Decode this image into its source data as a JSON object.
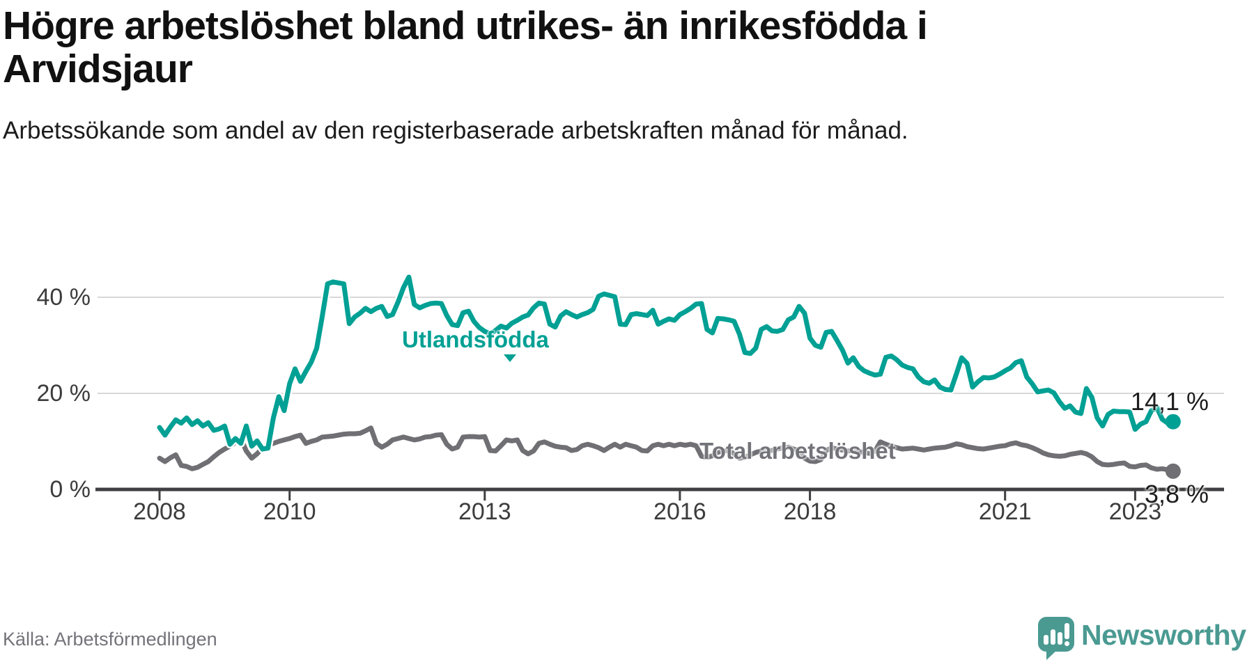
{
  "header": {
    "title": "Högre arbetslöshet bland utrikes- än inrikesfödda i Arvidsjaur",
    "subtitle": "Arbetssökande som andel av den registerbaserade arbetskraften månad för månad."
  },
  "footer": {
    "source": "Källa: Arbetsförmedlingen",
    "brand": "Newsworthy",
    "brand_color": "#4A9A92",
    "logo_icon": "speech-bubble-bar-chart-icon"
  },
  "chart_data": {
    "type": "line",
    "title": "Högre arbetslöshet bland utrikes- än inrikesfödda i Arvidsjaur",
    "subtitle": "Arbetssökande som andel av den registerbaserade arbetskraften månad för månad.",
    "grid": "horizontal",
    "background": "#ffffff",
    "gridline_color": "#D8D8D8",
    "axis_color": "#3F3F42",
    "x_start": "2008-01",
    "x_end": "2023-08",
    "x_axis": {
      "ticks": [
        {
          "year": 2008,
          "label": "2008"
        },
        {
          "year": 2010,
          "label": "2010"
        },
        {
          "year": 2013,
          "label": "2013"
        },
        {
          "year": 2016,
          "label": "2016"
        },
        {
          "year": 2018,
          "label": "2018"
        },
        {
          "year": 2021,
          "label": "2021"
        },
        {
          "year": 2023,
          "label": "2023"
        }
      ]
    },
    "y_axis": {
      "unit": "%",
      "ticks": [
        {
          "value": 40,
          "label": "40 %"
        },
        {
          "value": 20,
          "label": "20 %"
        },
        {
          "value": 0,
          "label": "0 %"
        }
      ],
      "ylim": [
        0,
        46
      ]
    },
    "series": [
      {
        "name": "Utlandsfödda",
        "color": "#00A094",
        "end_label": "14,1 %",
        "end_value": 14.1,
        "values": [
          12.9,
          11.3,
          13.0,
          14.5,
          13.8,
          14.9,
          13.5,
          14.3,
          13.2,
          13.9,
          12.3,
          12.6,
          13.2,
          9.4,
          10.6,
          9.6,
          13.2,
          9.0,
          10.1,
          8.4,
          8.6,
          14.9,
          19.3,
          16.4,
          22.0,
          25.1,
          22.5,
          24.6,
          26.5,
          29.4,
          35.9,
          42.8,
          43.2,
          43.0,
          42.8,
          34.5,
          35.9,
          36.7,
          37.7,
          37.0,
          37.7,
          38.1,
          36.0,
          36.4,
          39.0,
          42.0,
          44.2,
          38.5,
          37.8,
          38.3,
          38.7,
          38.8,
          38.7,
          36.2,
          34.3,
          34.1,
          36.8,
          37.1,
          35.0,
          33.7,
          32.9,
          32.4,
          33.1,
          34.0,
          33.6,
          34.6,
          35.2,
          35.9,
          36.3,
          37.8,
          38.8,
          38.6,
          34.4,
          33.8,
          36.1,
          37.0,
          36.4,
          35.9,
          36.4,
          36.8,
          37.5,
          40.2,
          40.7,
          40.4,
          40.1,
          34.4,
          34.3,
          36.4,
          36.6,
          36.4,
          36.2,
          37.3,
          34.4,
          35.0,
          35.5,
          35.2,
          36.4,
          37.0,
          37.7,
          38.6,
          38.7,
          33.3,
          32.6,
          35.6,
          35.5,
          35.3,
          35.0,
          32.3,
          28.5,
          28.3,
          29.4,
          33.3,
          33.9,
          33.0,
          32.9,
          33.3,
          35.3,
          35.9,
          38.1,
          36.7,
          31.5,
          30.0,
          29.6,
          32.7,
          32.9,
          31.0,
          29.0,
          26.3,
          27.4,
          25.6,
          24.7,
          24.2,
          23.8,
          24.0,
          27.5,
          27.8,
          27.0,
          25.9,
          25.4,
          25.1,
          23.4,
          22.4,
          22.1,
          22.8,
          21.3,
          20.8,
          20.7,
          24.0,
          27.4,
          26.2,
          21.3,
          22.4,
          23.3,
          23.2,
          23.4,
          24.0,
          24.7,
          25.3,
          26.4,
          26.8,
          23.4,
          22.0,
          20.3,
          20.5,
          20.7,
          20.1,
          18.3,
          16.9,
          17.4,
          16.1,
          15.8,
          21.0,
          19.2,
          14.9,
          13.2,
          15.6,
          16.3,
          16.2,
          16.2,
          16.1,
          12.5,
          13.6,
          14.1,
          16.4,
          17.1,
          14.6,
          13.8,
          14.1
        ]
      },
      {
        "name": "Total arbetslöshet",
        "color": "#6F6F74",
        "end_label": "3,8 %",
        "end_value": 3.8,
        "values": [
          6.5,
          5.8,
          6.6,
          7.2,
          5.0,
          4.8,
          4.3,
          4.6,
          5.2,
          5.8,
          6.8,
          7.7,
          8.4,
          9.0,
          9.8,
          10.6,
          8.0,
          6.5,
          7.4,
          8.7,
          9.2,
          9.6,
          10.0,
          10.3,
          10.6,
          11.0,
          11.3,
          9.6,
          10.0,
          10.3,
          10.9,
          11.0,
          11.1,
          11.3,
          11.5,
          11.6,
          11.6,
          11.7,
          12.2,
          12.8,
          9.6,
          8.8,
          9.4,
          10.3,
          10.6,
          10.9,
          10.6,
          10.3,
          10.5,
          10.9,
          11.0,
          11.3,
          11.4,
          9.4,
          8.4,
          8.8,
          10.9,
          11.0,
          11.0,
          10.9,
          11.0,
          8.1,
          8.0,
          9.1,
          10.3,
          10.1,
          10.3,
          8.1,
          7.4,
          8.0,
          9.6,
          9.9,
          9.4,
          9.0,
          8.8,
          8.7,
          8.1,
          8.3,
          9.1,
          9.4,
          9.1,
          8.7,
          8.1,
          8.8,
          9.4,
          8.8,
          9.4,
          9.1,
          8.8,
          8.1,
          8.0,
          9.1,
          9.4,
          9.1,
          9.4,
          9.1,
          9.4,
          9.2,
          9.4,
          9.1,
          6.9,
          6.7,
          7.0,
          7.7,
          8.0,
          8.1,
          7.4,
          6.5,
          6.7,
          7.2,
          7.7,
          8.0,
          8.1,
          8.1,
          8.4,
          8.7,
          8.8,
          8.4,
          8.1,
          6.5,
          5.9,
          5.8,
          6.2,
          8.1,
          8.7,
          8.4,
          8.2,
          8.0,
          8.1,
          7.9,
          7.7,
          7.5,
          8.0,
          9.9,
          9.4,
          9.0,
          8.7,
          8.4,
          8.5,
          8.6,
          8.4,
          8.2,
          8.4,
          8.6,
          8.7,
          8.8,
          9.1,
          9.5,
          9.3,
          8.9,
          8.7,
          8.5,
          8.4,
          8.6,
          8.8,
          9.0,
          9.1,
          9.5,
          9.7,
          9.3,
          9.1,
          8.7,
          8.2,
          7.6,
          7.2,
          7.0,
          6.9,
          7.0,
          7.3,
          7.5,
          7.7,
          7.4,
          6.8,
          5.8,
          5.2,
          5.1,
          5.2,
          5.4,
          5.5,
          4.8,
          4.7,
          5.0,
          5.1,
          4.5,
          4.2,
          4.3,
          4.1,
          3.8
        ]
      }
    ]
  }
}
